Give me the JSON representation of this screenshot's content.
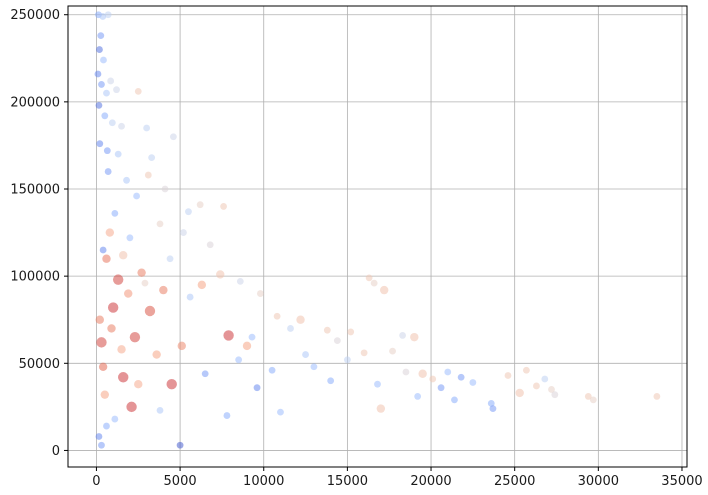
{
  "chart_data": {
    "type": "scatter",
    "title": "",
    "xlabel": "",
    "ylabel": "",
    "xlim": [
      -1700,
      35300
    ],
    "ylim": [
      -9500,
      255000
    ],
    "x_ticks": [
      0,
      5000,
      10000,
      15000,
      20000,
      25000,
      30000,
      35000
    ],
    "x_tick_labels": [
      "0",
      "5000",
      "10000",
      "15000",
      "20000",
      "25000",
      "30000",
      "35000"
    ],
    "y_ticks": [
      0,
      50000,
      100000,
      150000,
      200000,
      250000
    ],
    "y_tick_labels": [
      "0",
      "50000",
      "100000",
      "150000",
      "200000",
      "250000"
    ],
    "grid": true,
    "legend": "none",
    "colormap": "coolwarm",
    "colormap_stops": [
      "#3b4cc0",
      "#6788ee",
      "#9abbff",
      "#c9d7f0",
      "#edd1c2",
      "#f7a889",
      "#e26952",
      "#b40426"
    ],
    "point_alpha": 0.55,
    "points": [
      [
        120,
        250000,
        0.25
      ],
      [
        380,
        249000,
        0.35
      ],
      [
        700,
        250000,
        0.4
      ],
      [
        260,
        238000,
        0.2
      ],
      [
        180,
        230000,
        0.1
      ],
      [
        420,
        224000,
        0.3
      ],
      [
        90,
        216000,
        0.15
      ],
      [
        300,
        210000,
        0.2
      ],
      [
        600,
        205000,
        0.35
      ],
      [
        850,
        212000,
        0.45
      ],
      [
        1200,
        207000,
        0.45
      ],
      [
        2500,
        206000,
        0.6
      ],
      [
        150,
        198000,
        0.1
      ],
      [
        500,
        192000,
        0.25
      ],
      [
        950,
        188000,
        0.4
      ],
      [
        1500,
        186000,
        0.45
      ],
      [
        3000,
        185000,
        0.4
      ],
      [
        4600,
        180000,
        0.45
      ],
      [
        200,
        176000,
        0.15
      ],
      [
        650,
        172000,
        0.2
      ],
      [
        1300,
        170000,
        0.35
      ],
      [
        3300,
        168000,
        0.4
      ],
      [
        3100,
        158000,
        0.6
      ],
      [
        700,
        160000,
        0.2
      ],
      [
        1800,
        155000,
        0.35
      ],
      [
        4100,
        150000,
        0.5
      ],
      [
        2400,
        146000,
        0.3
      ],
      [
        6200,
        141000,
        0.55
      ],
      [
        7600,
        140000,
        0.6
      ],
      [
        5500,
        137000,
        0.4
      ],
      [
        1100,
        136000,
        0.25
      ],
      [
        3800,
        130000,
        0.55
      ],
      [
        5200,
        125000,
        0.45
      ],
      [
        2000,
        122000,
        0.3
      ],
      [
        6800,
        118000,
        0.5
      ],
      [
        400,
        115000,
        0.15
      ],
      [
        1600,
        112000,
        0.62
      ],
      [
        4400,
        110000,
        0.4
      ],
      [
        7400,
        101000,
        0.62
      ],
      [
        8600,
        97000,
        0.45
      ],
      [
        2900,
        96000,
        0.55
      ],
      [
        9800,
        90000,
        0.55
      ],
      [
        5600,
        88000,
        0.35
      ],
      [
        10800,
        77000,
        0.6
      ],
      [
        12200,
        75000,
        0.62
      ],
      [
        11600,
        70000,
        0.4
      ],
      [
        13800,
        69000,
        0.6
      ],
      [
        15200,
        68000,
        0.6
      ],
      [
        9300,
        65000,
        0.3
      ],
      [
        14400,
        63000,
        0.5
      ],
      [
        16300,
        99000,
        0.6
      ],
      [
        16600,
        96000,
        0.55
      ],
      [
        17200,
        92000,
        0.62
      ],
      [
        18300,
        66000,
        0.45
      ],
      [
        19000,
        65000,
        0.62
      ],
      [
        16000,
        56000,
        0.6
      ],
      [
        17700,
        57000,
        0.55
      ],
      [
        15000,
        52000,
        0.4
      ],
      [
        13000,
        48000,
        0.3
      ],
      [
        18500,
        45000,
        0.5
      ],
      [
        19500,
        44000,
        0.62
      ],
      [
        20100,
        41000,
        0.6
      ],
      [
        21000,
        45000,
        0.3
      ],
      [
        21800,
        42000,
        0.2
      ],
      [
        22500,
        39000,
        0.3
      ],
      [
        20600,
        36000,
        0.2
      ],
      [
        21400,
        29000,
        0.25
      ],
      [
        23600,
        27000,
        0.25
      ],
      [
        24600,
        43000,
        0.6
      ],
      [
        25700,
        46000,
        0.6
      ],
      [
        26300,
        37000,
        0.6
      ],
      [
        26800,
        41000,
        0.4
      ],
      [
        27200,
        35000,
        0.55
      ],
      [
        27400,
        32000,
        0.5
      ],
      [
        25300,
        33000,
        0.62
      ],
      [
        29400,
        31000,
        0.6
      ],
      [
        29700,
        29000,
        0.55
      ],
      [
        33500,
        31000,
        0.6
      ],
      [
        23700,
        24000,
        0.2
      ],
      [
        17000,
        24000,
        0.62
      ],
      [
        11000,
        22000,
        0.3
      ],
      [
        7800,
        20000,
        0.25
      ],
      [
        5000,
        3000,
        0.05
      ],
      [
        300,
        3000,
        0.2
      ],
      [
        150,
        8000,
        0.15
      ],
      [
        600,
        14000,
        0.25
      ],
      [
        1100,
        18000,
        0.3
      ],
      [
        2100,
        25000,
        0.92
      ],
      [
        3800,
        23000,
        0.35
      ],
      [
        1600,
        42000,
        0.92
      ],
      [
        4500,
        38000,
        0.92
      ],
      [
        300,
        62000,
        0.9
      ],
      [
        900,
        70000,
        0.8
      ],
      [
        2300,
        65000,
        0.9
      ],
      [
        3200,
        80000,
        0.88
      ],
      [
        1300,
        98000,
        0.9
      ],
      [
        4000,
        92000,
        0.8
      ],
      [
        7900,
        66000,
        0.92
      ],
      [
        600,
        110000,
        0.82
      ],
      [
        200,
        75000,
        0.8
      ],
      [
        1000,
        82000,
        0.92
      ],
      [
        1900,
        90000,
        0.75
      ],
      [
        400,
        48000,
        0.85
      ],
      [
        2700,
        102000,
        0.8
      ],
      [
        5100,
        60000,
        0.78
      ],
      [
        800,
        125000,
        0.7
      ],
      [
        1500,
        58000,
        0.7
      ],
      [
        3600,
        55000,
        0.72
      ],
      [
        6300,
        95000,
        0.72
      ],
      [
        9000,
        60000,
        0.72
      ],
      [
        500,
        32000,
        0.72
      ],
      [
        2500,
        38000,
        0.7
      ],
      [
        6500,
        44000,
        0.2
      ],
      [
        8500,
        52000,
        0.3
      ],
      [
        10500,
        46000,
        0.25
      ],
      [
        12500,
        55000,
        0.35
      ],
      [
        14000,
        40000,
        0.25
      ],
      [
        16800,
        38000,
        0.3
      ],
      [
        19200,
        31000,
        0.3
      ],
      [
        9600,
        36000,
        0.15
      ]
    ]
  }
}
